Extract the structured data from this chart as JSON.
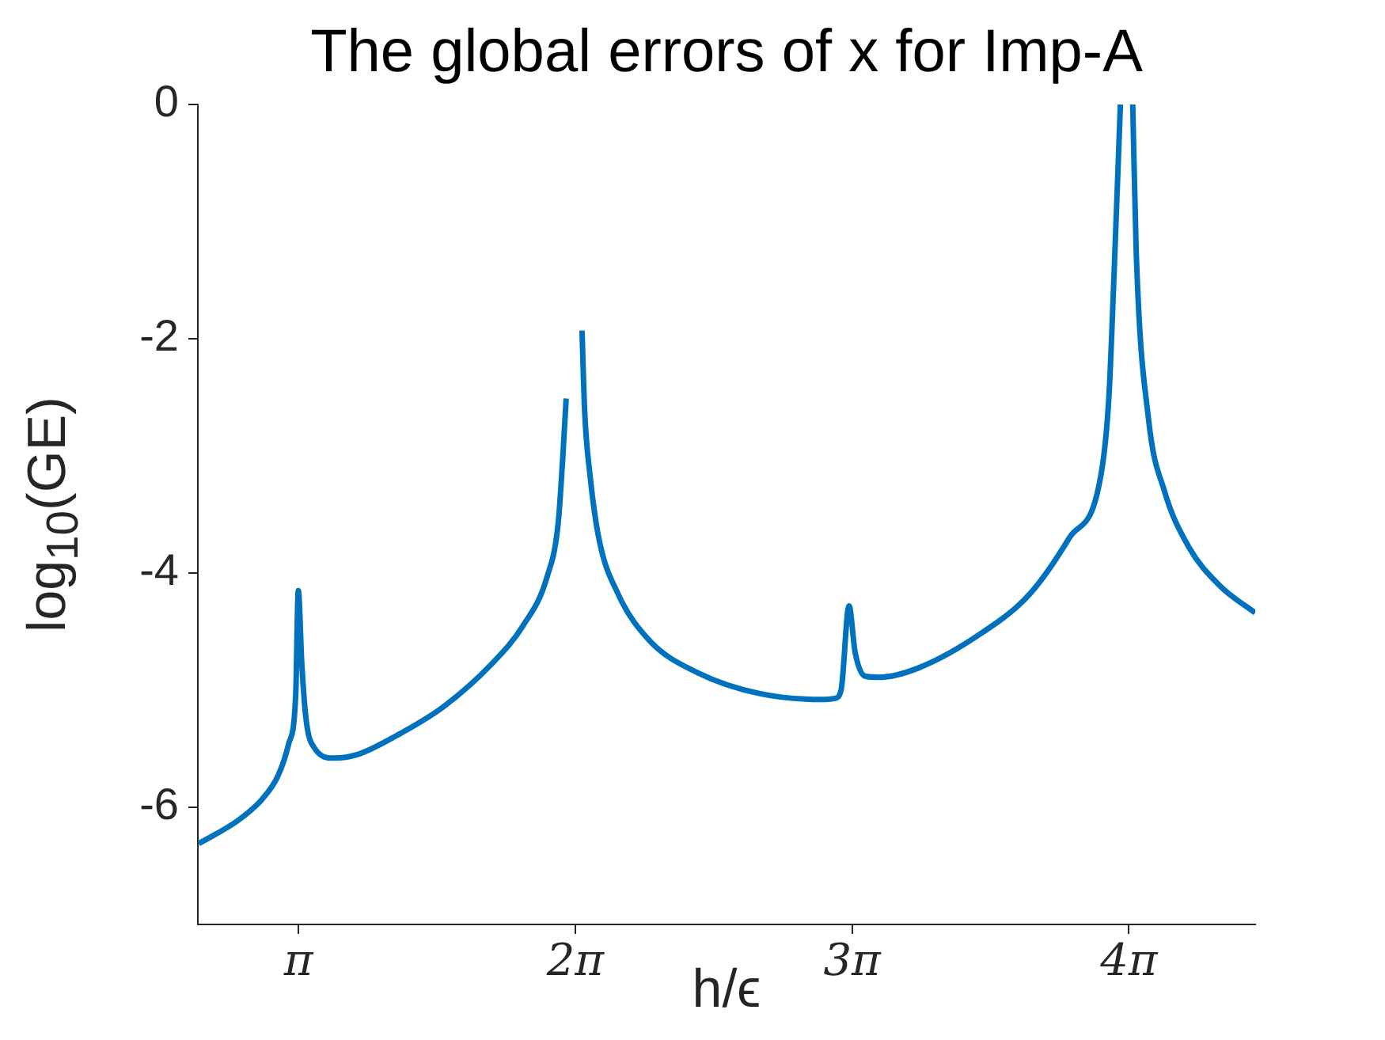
{
  "chart_data": {
    "type": "line",
    "title": "The global errors of x for Imp-A",
    "xlabel": "h/ϵ",
    "ylabel": "log$_{10}$(GE)",
    "x": [
      2.01,
      2.46,
      2.73,
      2.91,
      3.03,
      3.11,
      3.14,
      3.18,
      3.23,
      3.32,
      3.54,
      3.81,
      4.25,
      4.79,
      5.33,
      5.69,
      5.96,
      6.09,
      6.14,
      6.18,
      6.27,
      6.36,
      6.39,
      6.45,
      6.55,
      6.77,
      7.13,
      7.67,
      8.38,
      9.1,
      9.23,
      9.3,
      9.39,
      9.46,
      9.57,
      9.73,
      10.18,
      10.9,
      11.44,
      11.89,
      12.25,
      12.34,
      12.4,
      12.47,
      12.54,
      12.61,
      12.65,
      12.79,
      12.97,
      13.24,
      13.6,
      14.0
    ],
    "series": [
      {
        "color": "#0072bd",
        "values": [
          -6.31,
          -6.11,
          -5.93,
          -5.73,
          -5.46,
          -5.05,
          -4.15,
          -4.78,
          -5.26,
          -5.49,
          -5.58,
          -5.55,
          -5.39,
          -5.14,
          -4.78,
          -4.45,
          -4.04,
          -3.57,
          -3.03,
          -2.51,
          null,
          -1.93,
          -2.62,
          -3.16,
          -3.7,
          -4.18,
          -4.58,
          -4.85,
          -5.03,
          -5.08,
          -5.07,
          -5.0,
          -4.28,
          -4.68,
          -4.88,
          -4.89,
          -4.81,
          -4.51,
          -4.18,
          -3.7,
          -3.16,
          -2.49,
          -1.41,
          0,
          null,
          0,
          -1.27,
          -2.69,
          -3.3,
          -3.77,
          -4.11,
          -4.34
        ]
      }
    ],
    "xlim": [
      2,
      14
    ],
    "xticks": [
      {
        "value": 3.1416,
        "label": "π"
      },
      {
        "value": 6.2832,
        "label": "2π"
      },
      {
        "value": 9.4248,
        "label": "3π"
      },
      {
        "value": 12.5664,
        "label": "4π"
      }
    ],
    "ylim": [
      -7,
      0
    ],
    "yticks": [
      {
        "value": -6,
        "label": "-6"
      },
      {
        "value": -4,
        "label": "-4"
      },
      {
        "value": -2,
        "label": "-2"
      },
      {
        "value": 0,
        "label": "0"
      }
    ],
    "grid": false,
    "legend": false,
    "marker": "none",
    "line_style": "solid"
  }
}
